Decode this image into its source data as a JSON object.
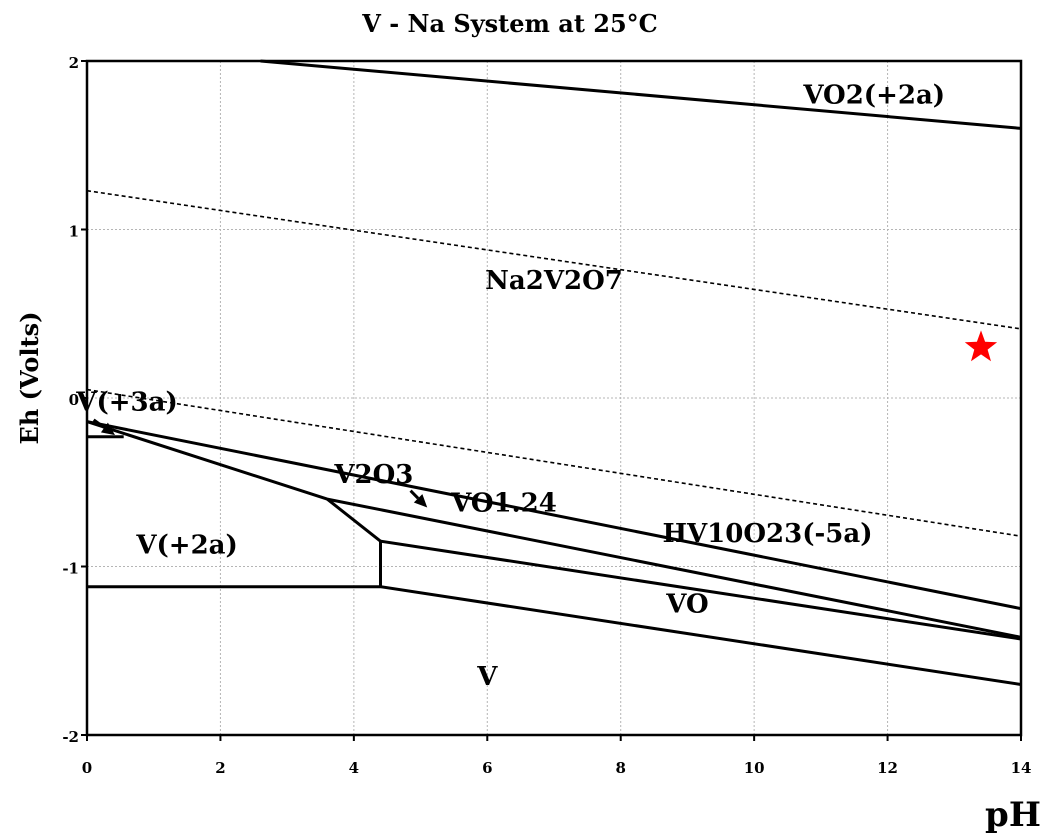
{
  "chart_data": {
    "type": "line",
    "title": "V - Na System at 25°C",
    "xlabel": "pH",
    "ylabel": "Eh (Volts)",
    "xlim": [
      0,
      14
    ],
    "ylim": [
      -2,
      2
    ],
    "x_ticks": [
      0,
      2,
      4,
      6,
      8,
      10,
      12,
      14
    ],
    "y_ticks": [
      2,
      1,
      0,
      -1,
      -2
    ],
    "x_tick_labels": [
      "0",
      "2",
      "4",
      "6",
      "8",
      "10",
      "12",
      "14"
    ],
    "y_tick_labels": [
      "2",
      "1",
      "0",
      "-1",
      "-2"
    ],
    "grid": true,
    "boundaries": [
      {
        "style": "solid",
        "points": [
          [
            2.6,
            2.0
          ],
          [
            14,
            1.6
          ]
        ]
      },
      {
        "style": "dashed",
        "points": [
          [
            0,
            1.23
          ],
          [
            14,
            0.41
          ]
        ]
      },
      {
        "style": "dashed",
        "points": [
          [
            0,
            0.05
          ],
          [
            14,
            -0.82
          ]
        ]
      },
      {
        "style": "solid",
        "points": [
          [
            0,
            -0.14
          ],
          [
            14,
            -1.25
          ]
        ]
      },
      {
        "style": "solid",
        "points": [
          [
            0,
            -0.23
          ],
          [
            0.55,
            -0.23
          ]
        ]
      },
      {
        "style": "solid",
        "points": [
          [
            0,
            -0.14
          ],
          [
            3.6,
            -0.6
          ],
          [
            14,
            -1.42
          ]
        ]
      },
      {
        "style": "solid",
        "points": [
          [
            3.6,
            -0.6
          ],
          [
            4.4,
            -0.85
          ],
          [
            4.4,
            -1.12
          ]
        ]
      },
      {
        "style": "solid",
        "points": [
          [
            4.4,
            -0.85
          ],
          [
            14,
            -1.43
          ]
        ]
      },
      {
        "style": "solid",
        "points": [
          [
            0,
            -1.12
          ],
          [
            4.4,
            -1.12
          ],
          [
            14,
            -1.7
          ]
        ]
      }
    ],
    "arrows": [
      {
        "from": [
          0.1,
          -0.13
        ],
        "to": [
          0.42,
          -0.22
        ]
      },
      {
        "from": [
          4.85,
          -0.55
        ],
        "to": [
          5.1,
          -0.65
        ]
      }
    ],
    "region_labels": [
      {
        "text": "VO2(+2a)",
        "x": 11.8,
        "y": 1.8
      },
      {
        "text": "Na2V2O7",
        "x": 7.0,
        "y": 0.7
      },
      {
        "text": "V(+3a)",
        "x": 0.6,
        "y": -0.02
      },
      {
        "text": "V2O3",
        "x": 4.3,
        "y": -0.45
      },
      {
        "text": "VO1.24",
        "x": 6.25,
        "y": -0.62
      },
      {
        "text": "HV10O23(-5a)",
        "x": 10.2,
        "y": -0.8
      },
      {
        "text": "V(+2a)",
        "x": 1.5,
        "y": -0.87
      },
      {
        "text": "VO",
        "x": 9.0,
        "y": -1.22
      },
      {
        "text": "V",
        "x": 6.0,
        "y": -1.65
      }
    ],
    "marker": {
      "shape": "star",
      "color": "#ff0000",
      "x": 13.4,
      "y": 0.3
    }
  }
}
